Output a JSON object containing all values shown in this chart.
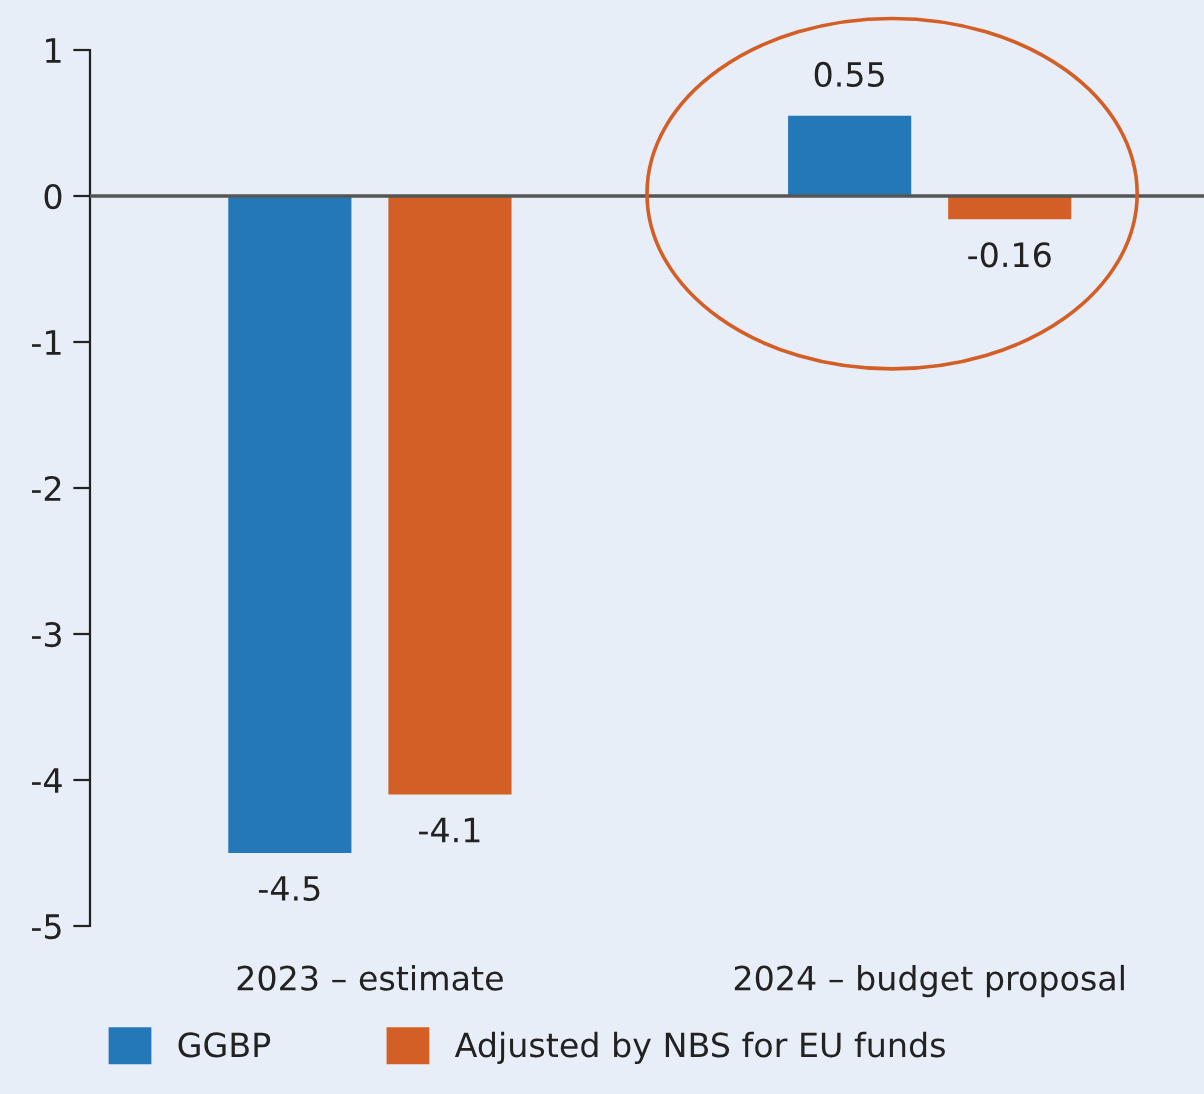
{
  "chart_data": {
    "type": "bar",
    "categories": [
      "2023 – estimate",
      "2024 – budget proposal"
    ],
    "series": [
      {
        "name": "GGBP",
        "color": "#2478b8",
        "values": [
          -4.5,
          0.55
        ]
      },
      {
        "name": "Adjusted by NBS for EU funds",
        "color": "#d35f27",
        "values": [
          -4.1,
          -0.16
        ]
      }
    ],
    "ylim": [
      -5,
      1
    ],
    "yticks": [
      -5,
      -4,
      -3,
      -2,
      -1,
      0,
      1
    ],
    "ref_lines": [
      {
        "axis": "y",
        "value": 0,
        "color": "#555555"
      }
    ],
    "data_labels": true,
    "legend": "bottom left"
  }
}
